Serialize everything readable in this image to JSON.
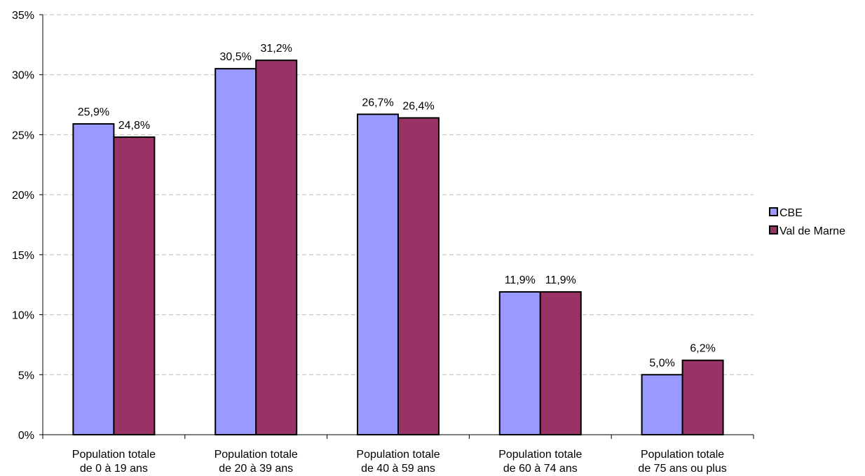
{
  "chart_data": {
    "type": "bar",
    "title": "",
    "xlabel": "",
    "ylabel": "",
    "ylim": [
      0,
      35
    ],
    "y_ticks": [
      0,
      5,
      10,
      15,
      20,
      25,
      30,
      35
    ],
    "y_tick_labels": [
      "0%",
      "5%",
      "10%",
      "15%",
      "20%",
      "25%",
      "30%",
      "35%"
    ],
    "grid": true,
    "legend_position": "right",
    "categories": [
      [
        "Population totale",
        "de 0 à 19 ans"
      ],
      [
        "Population totale",
        "de 20 à 39 ans"
      ],
      [
        "Population totale",
        "de 40 à 59 ans"
      ],
      [
        "Population totale",
        "de 60 à 74 ans"
      ],
      [
        "Population totale",
        "de 75 ans ou plus"
      ]
    ],
    "series": [
      {
        "name": "CBE",
        "color": "#9999ff",
        "values": [
          25.9,
          30.5,
          26.7,
          11.9,
          5.0
        ],
        "labels": [
          "25,9%",
          "30,5%",
          "26,7%",
          "11,9%",
          "5,0%"
        ]
      },
      {
        "name": "Val de Marne",
        "color": "#993366",
        "values": [
          24.8,
          31.2,
          26.4,
          11.9,
          6.2
        ],
        "labels": [
          "24,8%",
          "31,2%",
          "26,4%",
          "11,9%",
          "6,2%"
        ]
      }
    ]
  }
}
